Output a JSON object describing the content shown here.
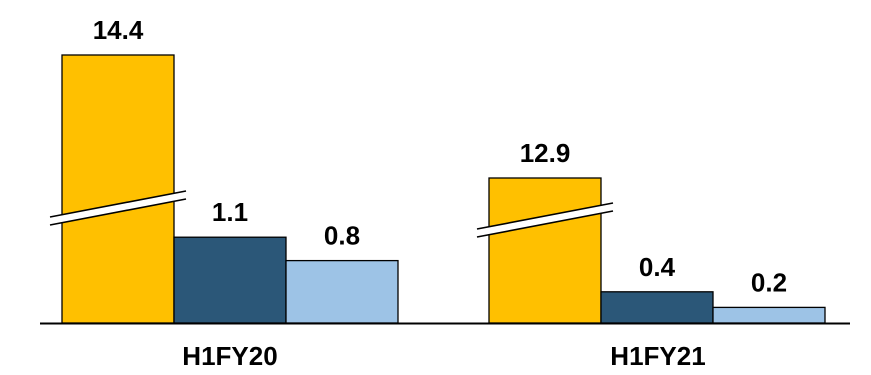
{
  "chart_data": {
    "type": "bar",
    "categories": [
      "H1FY20",
      "H1FY21"
    ],
    "series": [
      {
        "values": [
          14.4,
          12.9
        ],
        "color": "#FFC000",
        "axis_break": true
      },
      {
        "values": [
          1.1,
          0.4
        ],
        "color": "#2B5778"
      },
      {
        "values": [
          0.8,
          0.2
        ],
        "color": "#9DC3E6"
      }
    ],
    "value_labels": [
      [
        "14.4",
        "12.9"
      ],
      [
        "1.1",
        "0.4"
      ],
      [
        "0.8",
        "0.2"
      ]
    ],
    "title": "",
    "xlabel": "",
    "ylabel": "",
    "grid": false,
    "legend": "none"
  }
}
